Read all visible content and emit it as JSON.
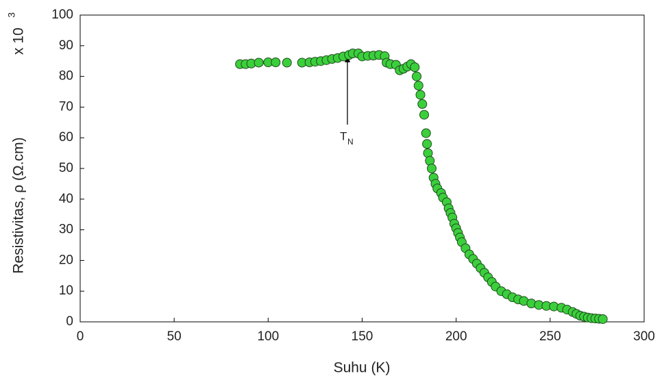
{
  "chart_data": {
    "type": "scatter",
    "xlabel": "Suhu (K)",
    "ylabel": "Resistivitas, ρ (Ω.cm)",
    "multiplier": "x 10",
    "multiplier_exponent": "3",
    "annotation": {
      "text": "T",
      "subscript": "N"
    },
    "xlim": [
      0,
      300
    ],
    "xticks": [
      0,
      50,
      100,
      150,
      200,
      250,
      300
    ],
    "ylim": [
      0,
      100
    ],
    "yticks": [
      0,
      10,
      20,
      30,
      40,
      50,
      60,
      70,
      80,
      90,
      100
    ],
    "color": "#3ccf3c",
    "edgecolor": "#1f4a1f",
    "x": [
      85,
      88,
      91,
      95,
      100,
      104,
      110,
      118,
      122,
      125,
      128,
      131,
      134,
      137,
      140,
      143,
      145,
      148,
      150,
      153,
      156,
      159,
      162,
      163,
      165,
      168,
      170,
      172,
      174,
      176,
      178,
      179,
      180,
      181,
      182,
      183,
      184,
      184.5,
      185,
      186,
      187,
      188,
      189,
      190,
      192,
      193,
      195,
      196,
      197,
      198,
      199,
      200,
      201,
      202,
      203,
      205,
      207,
      209,
      211,
      213,
      215,
      217,
      219,
      221,
      224,
      227,
      230,
      233,
      236,
      240,
      244,
      248,
      252,
      256,
      259,
      262,
      264,
      266,
      268,
      270,
      272,
      274,
      276,
      278
    ],
    "y": [
      84,
      84,
      84.2,
      84.5,
      84.6,
      84.6,
      84.5,
      84.5,
      84.6,
      84.8,
      85,
      85.3,
      85.7,
      86,
      86.5,
      87,
      87.5,
      87.5,
      86.5,
      86.7,
      86.8,
      87,
      86.6,
      84.5,
      84,
      83.8,
      82,
      82.5,
      83.2,
      84,
      83,
      80,
      77,
      74,
      71,
      67.5,
      61.5,
      58,
      55,
      52.5,
      50,
      47,
      45,
      43.5,
      42,
      40.5,
      39,
      37,
      35.5,
      34,
      32,
      30.5,
      29,
      27.5,
      26,
      24,
      22,
      20.5,
      19,
      17.5,
      16,
      14.5,
      13,
      11.5,
      10,
      9,
      8,
      7.3,
      6.8,
      6,
      5.5,
      5.2,
      5,
      4.6,
      4,
      3.2,
      2.6,
      2,
      1.7,
      1.4,
      1.2,
      1.1,
      1,
      0.9
    ]
  }
}
